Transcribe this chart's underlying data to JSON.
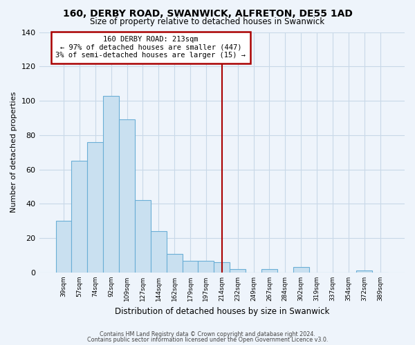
{
  "title": "160, DERBY ROAD, SWANWICK, ALFRETON, DE55 1AD",
  "subtitle": "Size of property relative to detached houses in Swanwick",
  "xlabel": "Distribution of detached houses by size in Swanwick",
  "ylabel": "Number of detached properties",
  "categories": [
    "39sqm",
    "57sqm",
    "74sqm",
    "92sqm",
    "109sqm",
    "127sqm",
    "144sqm",
    "162sqm",
    "179sqm",
    "197sqm",
    "214sqm",
    "232sqm",
    "249sqm",
    "267sqm",
    "284sqm",
    "302sqm",
    "319sqm",
    "337sqm",
    "354sqm",
    "372sqm",
    "389sqm"
  ],
  "values": [
    30,
    65,
    76,
    103,
    89,
    42,
    24,
    11,
    7,
    7,
    6,
    2,
    0,
    2,
    0,
    3,
    0,
    0,
    0,
    1,
    0
  ],
  "bar_color": "#c9e0f0",
  "bar_edge_color": "#6aaed6",
  "vline_color": "#aa0000",
  "annotation_title": "160 DERBY ROAD: 213sqm",
  "annotation_line1": "← 97% of detached houses are smaller (447)",
  "annotation_line2": "3% of semi-detached houses are larger (15) →",
  "annotation_box_color": "#ffffff",
  "annotation_box_edge": "#aa0000",
  "ylim": [
    0,
    140
  ],
  "yticks": [
    0,
    20,
    40,
    60,
    80,
    100,
    120,
    140
  ],
  "footnote1": "Contains HM Land Registry data © Crown copyright and database right 2024.",
  "footnote2": "Contains public sector information licensed under the Open Government Licence v3.0.",
  "background_color": "#eef4fb",
  "grid_color": "#c8d8e8"
}
